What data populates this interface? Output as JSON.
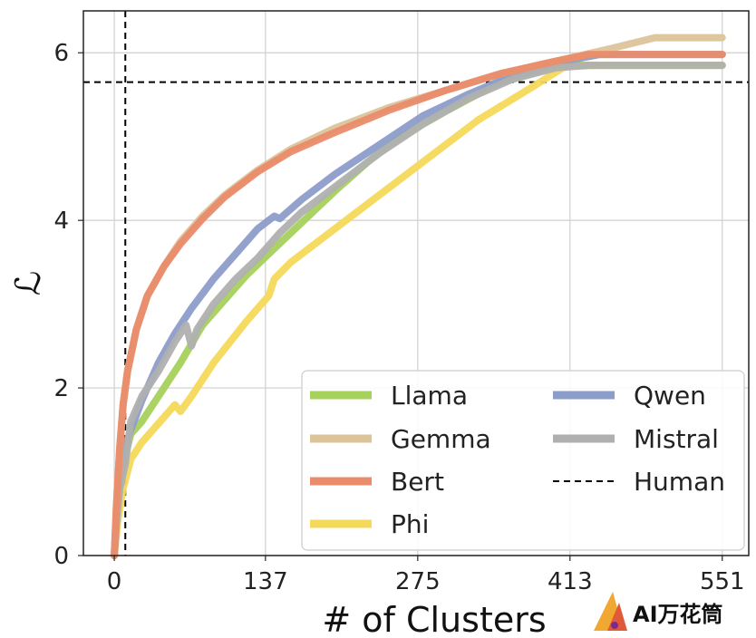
{
  "chart_data": {
    "type": "line",
    "xlabel": "# of Clusters",
    "ylabel": "ℒ",
    "xlim": [
      -28,
      575
    ],
    "ylim": [
      0,
      6.5
    ],
    "xticks": [
      0,
      137,
      275,
      413,
      551
    ],
    "yticks": [
      0,
      2,
      4,
      6
    ],
    "grid": true,
    "legend_position": "lower-right",
    "series": [
      {
        "name": "Llama",
        "color": "#a6d15b",
        "x": [
          0,
          2,
          5,
          10,
          15,
          25,
          40,
          60,
          80,
          100,
          120,
          140,
          160,
          180,
          200,
          230,
          260,
          300,
          350,
          400,
          420,
          551
        ],
        "y": [
          0.0,
          0.4,
          0.9,
          1.2,
          1.45,
          1.6,
          1.9,
          2.3,
          2.75,
          3.05,
          3.35,
          3.6,
          3.85,
          4.1,
          4.35,
          4.7,
          5.0,
          5.3,
          5.65,
          5.85,
          5.85,
          5.85
        ]
      },
      {
        "name": "Gemma",
        "color": "#dcc49a",
        "x": [
          0,
          2,
          5,
          8,
          12,
          20,
          30,
          45,
          60,
          80,
          100,
          130,
          160,
          200,
          250,
          300,
          350,
          400,
          450,
          490,
          551
        ],
        "y": [
          0.0,
          0.6,
          1.3,
          1.8,
          2.2,
          2.7,
          3.1,
          3.45,
          3.75,
          4.05,
          4.3,
          4.6,
          4.85,
          5.1,
          5.35,
          5.55,
          5.75,
          5.9,
          6.05,
          6.18,
          6.18
        ]
      },
      {
        "name": "Bert",
        "color": "#ea8c6b",
        "x": [
          0,
          2,
          5,
          8,
          12,
          20,
          30,
          45,
          60,
          80,
          100,
          130,
          160,
          200,
          250,
          300,
          350,
          400,
          430,
          551
        ],
        "y": [
          0.0,
          0.6,
          1.3,
          1.8,
          2.2,
          2.7,
          3.1,
          3.45,
          3.72,
          4.02,
          4.28,
          4.58,
          4.82,
          5.05,
          5.32,
          5.55,
          5.75,
          5.9,
          5.98,
          5.98
        ]
      },
      {
        "name": "Phi",
        "color": "#f5d95a",
        "x": [
          0,
          3,
          8,
          15,
          25,
          35,
          45,
          55,
          60,
          70,
          90,
          120,
          140,
          145,
          160,
          190,
          230,
          280,
          330,
          380,
          410,
          551
        ],
        "y": [
          0.0,
          0.4,
          0.8,
          1.15,
          1.35,
          1.5,
          1.65,
          1.8,
          1.72,
          1.9,
          2.3,
          2.8,
          3.1,
          3.3,
          3.5,
          3.8,
          4.2,
          4.7,
          5.2,
          5.6,
          5.85,
          5.85
        ]
      },
      {
        "name": "Qwen",
        "color": "#8c9dc9",
        "x": [
          0,
          2,
          5,
          10,
          15,
          25,
          40,
          55,
          70,
          90,
          110,
          130,
          145,
          150,
          170,
          200,
          240,
          280,
          320,
          360,
          400,
          440,
          551
        ],
        "y": [
          0.0,
          0.5,
          0.9,
          1.3,
          1.5,
          1.85,
          2.3,
          2.65,
          2.95,
          3.3,
          3.6,
          3.9,
          4.05,
          4.02,
          4.25,
          4.55,
          4.9,
          5.25,
          5.5,
          5.72,
          5.88,
          5.98,
          5.98
        ]
      },
      {
        "name": "Mistral",
        "color": "#b0b0b0",
        "x": [
          0,
          2,
          5,
          10,
          15,
          25,
          40,
          55,
          65,
          70,
          75,
          90,
          110,
          130,
          150,
          170,
          200,
          240,
          280,
          320,
          360,
          400,
          430,
          551
        ],
        "y": [
          0.0,
          0.4,
          0.8,
          1.1,
          1.6,
          1.9,
          2.2,
          2.55,
          2.75,
          2.5,
          2.7,
          3.0,
          3.3,
          3.55,
          3.85,
          4.1,
          4.4,
          4.8,
          5.15,
          5.45,
          5.68,
          5.82,
          5.85,
          5.85
        ]
      }
    ],
    "reference_lines": [
      {
        "name": "Human",
        "orientation": "horizontal",
        "value": 5.65,
        "style": "dashed",
        "color": "#000000"
      },
      {
        "name": "",
        "orientation": "vertical",
        "value": 10,
        "style": "dashed",
        "color": "#000000"
      }
    ]
  },
  "watermark": {
    "text": "AI万花筒"
  }
}
